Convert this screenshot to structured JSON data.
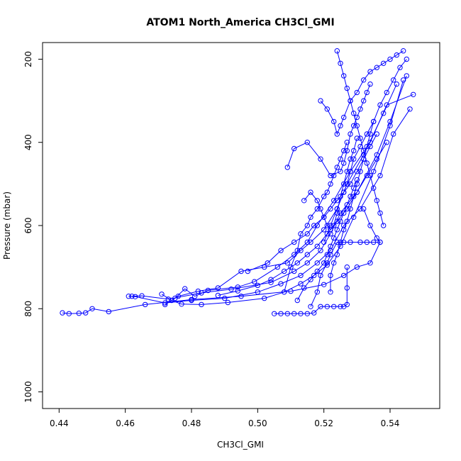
{
  "chart_data": {
    "type": "scatter",
    "title": "ATOM1 North_America CH3Cl_GMI",
    "xlabel": "CH3Cl_GMI",
    "ylabel": "Pressure (mbar)",
    "xlim": [
      0.435,
      0.555
    ],
    "ylim": [
      1040,
      160
    ],
    "y_reversed": true,
    "x_ticks": [
      0.44,
      0.46,
      0.48,
      0.5,
      0.52,
      0.54
    ],
    "x_tick_labels": [
      "0.44",
      "0.46",
      "0.48",
      "0.50",
      "0.52",
      "0.54"
    ],
    "y_ticks": [
      200,
      400,
      600,
      800,
      1000
    ],
    "y_tick_labels": [
      "200",
      "400",
      "600",
      "800",
      "1000"
    ],
    "grid": false,
    "legend": "none",
    "series_color": "#0000ff",
    "marker": "open-circle",
    "series": [
      {
        "x": [
          0.441,
          0.443,
          0.446,
          0.448,
          0.45,
          0.455,
          0.466,
          0.48,
          0.495,
          0.51,
          0.52,
          0.526,
          0.53,
          0.534,
          0.537
        ],
        "y": [
          810,
          812,
          811,
          810,
          800,
          807,
          790,
          778,
          770,
          758,
          742,
          720,
          700,
          690,
          640
        ]
      },
      {
        "x": [
          0.461,
          0.463,
          0.472,
          0.48,
          0.49,
          0.5,
          0.507,
          0.513,
          0.518,
          0.522,
          0.526,
          0.531,
          0.537,
          0.541,
          0.546
        ],
        "y": [
          770,
          771,
          786,
          780,
          775,
          760,
          740,
          720,
          690,
          660,
          600,
          560,
          480,
          380,
          320
        ]
      },
      {
        "x": [
          0.462,
          0.465,
          0.473,
          0.483,
          0.492,
          0.504,
          0.511,
          0.515,
          0.519,
          0.522,
          0.525,
          0.53,
          0.536,
          0.54,
          0.545
        ],
        "y": [
          770,
          769,
          777,
          762,
          753,
          737,
          710,
          690,
          660,
          620,
          570,
          520,
          430,
          350,
          240
        ]
      },
      {
        "x": [
          0.471,
          0.474,
          0.477,
          0.483,
          0.491,
          0.502,
          0.508,
          0.513,
          0.517,
          0.521,
          0.525,
          0.529,
          0.535,
          0.54,
          0.544
        ],
        "y": [
          765,
          780,
          789,
          790,
          785,
          775,
          760,
          740,
          720,
          695,
          650,
          580,
          470,
          360,
          250
        ]
      },
      {
        "x": [
          0.475,
          0.478,
          0.481,
          0.485,
          0.494,
          0.499,
          0.506,
          0.511,
          0.515,
          0.518,
          0.523,
          0.528,
          0.534,
          0.539,
          0.547
        ],
        "y": [
          775,
          752,
          770,
          756,
          748,
          735,
          700,
          670,
          640,
          600,
          540,
          470,
          400,
          310,
          285
        ]
      },
      {
        "x": [
          0.472,
          0.476,
          0.482,
          0.488,
          0.495,
          0.502,
          0.509,
          0.513,
          0.516,
          0.52,
          0.524,
          0.527,
          0.532,
          0.538,
          0.542
        ],
        "y": [
          790,
          770,
          758,
          750,
          710,
          700,
          690,
          660,
          640,
          610,
          560,
          500,
          430,
          330,
          260
        ]
      },
      {
        "x": [
          0.505,
          0.507,
          0.509,
          0.511,
          0.513,
          0.515,
          0.517,
          0.519,
          0.521,
          0.523,
          0.525,
          0.526,
          0.527,
          0.527,
          0.527
        ],
        "y": [
          812,
          812,
          812,
          812,
          812,
          812,
          810,
          795,
          795,
          795,
          795,
          795,
          790,
          750,
          700
        ]
      },
      {
        "x": [
          0.516,
          0.518,
          0.519,
          0.521,
          0.522,
          0.524,
          0.526,
          0.528,
          0.531,
          0.533,
          0.535,
          0.537,
          0.536,
          0.534,
          0.532
        ],
        "y": [
          795,
          760,
          720,
          690,
          670,
          640,
          640,
          640,
          640,
          640,
          640,
          640,
          630,
          600,
          560
        ]
      },
      {
        "x": [
          0.508,
          0.51,
          0.512,
          0.513,
          0.515,
          0.516,
          0.518,
          0.52,
          0.521,
          0.522,
          0.523,
          0.524,
          0.525,
          0.526,
          0.527
        ],
        "y": [
          760,
          700,
          660,
          620,
          600,
          580,
          560,
          530,
          520,
          500,
          480,
          460,
          440,
          420,
          400
        ]
      },
      {
        "x": [
          0.514,
          0.516,
          0.518,
          0.519,
          0.52,
          0.521,
          0.522,
          0.523,
          0.524,
          0.525,
          0.526,
          0.527,
          0.528,
          0.529,
          0.53
        ],
        "y": [
          540,
          520,
          540,
          560,
          580,
          600,
          610,
          600,
          570,
          530,
          500,
          470,
          440,
          420,
          390
        ]
      },
      {
        "x": [
          0.509,
          0.511,
          0.515,
          0.519,
          0.522,
          0.525,
          0.526,
          0.527,
          0.528,
          0.529,
          0.53,
          0.531,
          0.532,
          0.533,
          0.534
        ],
        "y": [
          460,
          415,
          400,
          440,
          480,
          470,
          450,
          420,
          380,
          360,
          340,
          320,
          300,
          280,
          260
        ]
      },
      {
        "x": [
          0.519,
          0.521,
          0.523,
          0.524,
          0.525,
          0.526,
          0.528,
          0.53,
          0.532,
          0.534,
          0.536,
          0.538,
          0.54,
          0.542,
          0.544
        ],
        "y": [
          300,
          320,
          350,
          380,
          360,
          340,
          300,
          280,
          250,
          230,
          220,
          210,
          200,
          190,
          180
        ]
      },
      {
        "x": [
          0.52,
          0.522,
          0.524,
          0.526,
          0.527,
          0.528,
          0.529,
          0.531,
          0.533,
          0.535,
          0.537,
          0.539,
          0.541,
          0.543,
          0.545
        ],
        "y": [
          640,
          600,
          560,
          520,
          500,
          470,
          440,
          410,
          380,
          350,
          310,
          280,
          250,
          220,
          200
        ]
      },
      {
        "x": [
          0.497,
          0.503,
          0.507,
          0.511,
          0.515,
          0.517,
          0.52,
          0.522,
          0.524,
          0.526,
          0.528,
          0.53,
          0.532,
          0.534,
          0.536
        ],
        "y": [
          710,
          690,
          660,
          640,
          620,
          600,
          580,
          560,
          540,
          520,
          500,
          470,
          440,
          410,
          380
        ]
      },
      {
        "x": [
          0.522,
          0.522,
          0.523,
          0.524,
          0.525,
          0.526,
          0.527,
          0.528,
          0.529,
          0.53,
          0.531,
          0.532,
          0.533,
          0.534,
          0.535
        ],
        "y": [
          760,
          720,
          690,
          670,
          640,
          610,
          590,
          560,
          530,
          500,
          470,
          440,
          410,
          380,
          350
        ]
      },
      {
        "x": [
          0.524,
          0.525,
          0.526,
          0.527,
          0.528,
          0.529,
          0.53,
          0.531,
          0.532,
          0.533,
          0.534,
          0.535,
          0.536,
          0.537,
          0.538
        ],
        "y": [
          180,
          210,
          240,
          270,
          300,
          330,
          360,
          390,
          420,
          450,
          480,
          510,
          540,
          570,
          600
        ]
      },
      {
        "x": [
          0.488,
          0.494,
          0.5,
          0.504,
          0.508,
          0.512,
          0.515,
          0.518,
          0.521,
          0.524,
          0.527,
          0.53,
          0.533,
          0.536,
          0.539
        ],
        "y": [
          768,
          757,
          744,
          730,
          710,
          690,
          670,
          650,
          620,
          590,
          560,
          520,
          480,
          440,
          400
        ]
      },
      {
        "x": [
          0.512,
          0.514,
          0.516,
          0.518,
          0.52,
          0.521,
          0.522,
          0.523,
          0.524,
          0.525,
          0.526,
          0.527,
          0.528,
          0.529,
          0.53
        ],
        "y": [
          780,
          750,
          730,
          710,
          690,
          670,
          650,
          630,
          610,
          590,
          570,
          550,
          530,
          510,
          490
        ]
      }
    ]
  }
}
